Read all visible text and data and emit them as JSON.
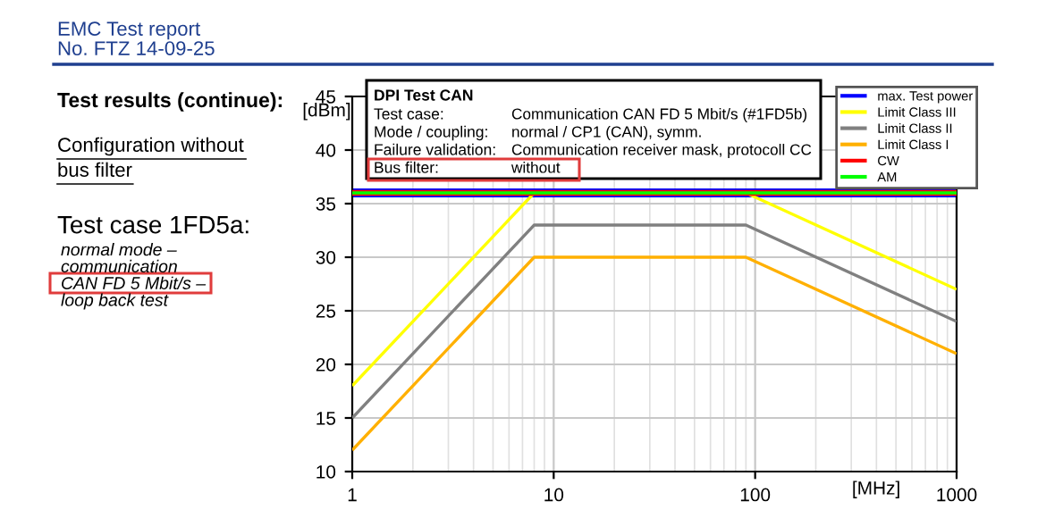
{
  "chart_data": {
    "type": "line",
    "xlabel": "[MHz]",
    "ylabel": "[dBm]",
    "x": [
      1,
      8,
      90,
      1000
    ],
    "series": [
      {
        "name": "max. Test power",
        "color": "#0000ff",
        "values": [
          36,
          36,
          36,
          36
        ]
      },
      {
        "name": "Limit Class III",
        "color": "#ffff00",
        "values": [
          18,
          36,
          36,
          27
        ]
      },
      {
        "name": "Limit Class II",
        "color": "#808080",
        "values": [
          15,
          33,
          33,
          24
        ]
      },
      {
        "name": "Limit Class I",
        "color": "#ffb000",
        "values": [
          12,
          30,
          30,
          21
        ]
      },
      {
        "name": "CW",
        "color": "#ff0000",
        "values": [
          36,
          36,
          36,
          36
        ]
      },
      {
        "name": "AM",
        "color": "#00ff00",
        "values": [
          36,
          36,
          36,
          36
        ]
      }
    ],
    "log": "x",
    "xlim": [
      1,
      1000
    ],
    "xticks": [
      1,
      10,
      100,
      1000
    ],
    "ylim": [
      10,
      45
    ],
    "yticks": [
      10,
      15,
      20,
      25,
      30,
      35,
      40,
      45
    ],
    "grid": true,
    "legend": "top right",
    "marker": "none",
    "line_style": "solid",
    "annotations": [
      "EMC Test report",
      "No. FTZ 14-09-25",
      "Test results (continue):",
      "Configuration without\nbus filter",
      "Test case 1FD5a:",
      "normal mode –\ncommunication\nCAN FD 5 Mbit/s –\nloop back test",
      "DPI Test CAN",
      "Test case:",
      "Communication CAN FD 5 Mbit/s (#1FD5b)",
      "Mode / coupling:",
      "normal / CP1 (CAN), symm.",
      "Failure validation:",
      "Communication receiver mask, protocoll CC",
      "Bus filter:",
      "without"
    ]
  }
}
